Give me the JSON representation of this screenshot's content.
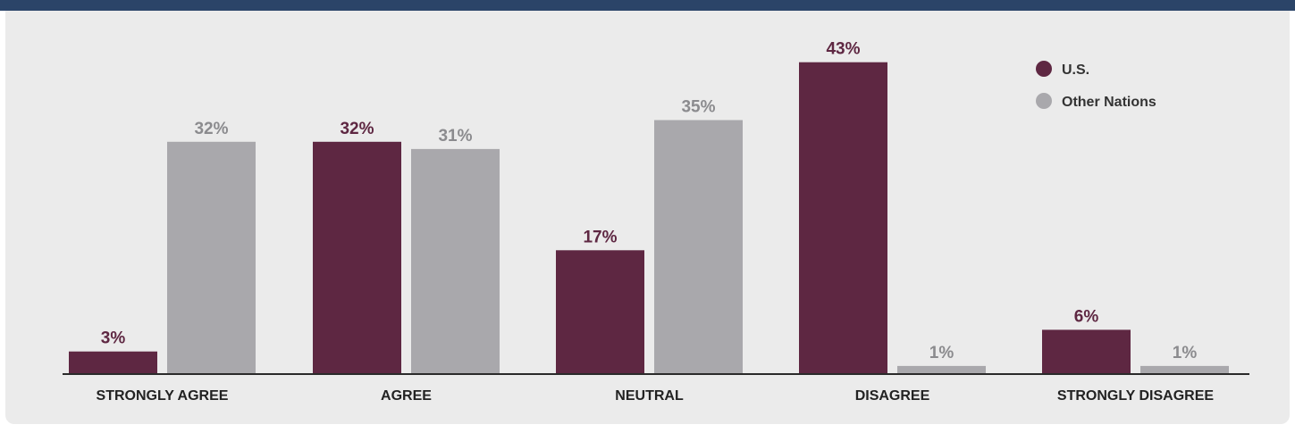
{
  "chart_data": {
    "type": "bar",
    "categories": [
      "STRONGLY AGREE",
      "AGREE",
      "NEUTRAL",
      "DISAGREE",
      "STRONGLY DISAGREE"
    ],
    "series": [
      {
        "name": "U.S.",
        "values": [
          3,
          32,
          17,
          43,
          6
        ],
        "labels": [
          "3%",
          "32%",
          "17%",
          "43%",
          "6%"
        ]
      },
      {
        "name": "Other Nations",
        "values": [
          32,
          31,
          35,
          1,
          1
        ],
        "labels": [
          "32%",
          "31%",
          "35%",
          "1%",
          "1%"
        ]
      }
    ],
    "ylim": [
      0,
      45
    ],
    "grid": false,
    "legend_position": "top-right"
  },
  "colors": {
    "us": "#5e2742",
    "other": "#a9a8ac",
    "other_label": "#8b8b8e",
    "header_bar": "#2b4468",
    "panel": "#ebebeb",
    "axis": "#2a2a2a"
  }
}
